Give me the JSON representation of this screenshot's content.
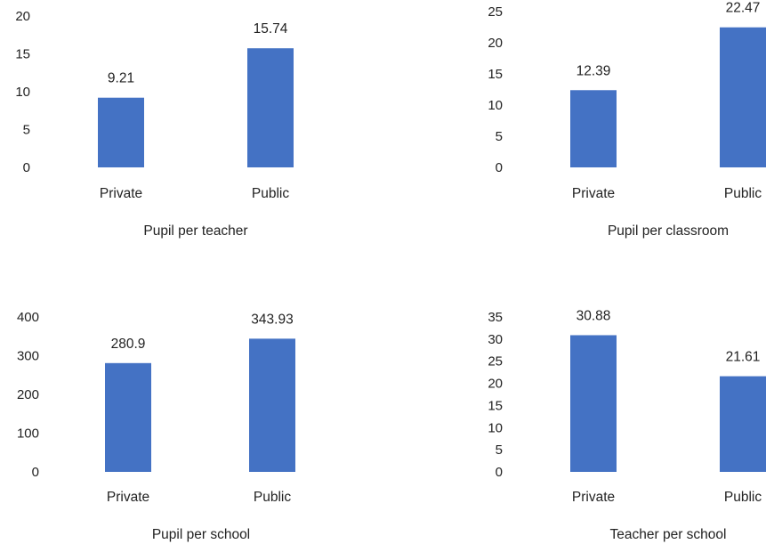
{
  "chart_data": [
    {
      "type": "bar",
      "title": "Pupil per teacher",
      "categories": [
        "Private",
        "Public"
      ],
      "values": [
        9.21,
        15.74
      ],
      "data_labels": [
        "9.21",
        "15.74"
      ],
      "ylim": [
        0,
        20
      ],
      "yticks": [
        "0",
        "5",
        "10",
        "15",
        "20"
      ],
      "grid": false,
      "color": "#4472c4"
    },
    {
      "type": "bar",
      "title": "Pupil per classroom",
      "categories": [
        "Private",
        "Public"
      ],
      "values": [
        12.39,
        22.47
      ],
      "data_labels": [
        "12.39",
        "22.47"
      ],
      "ylim": [
        0,
        25
      ],
      "yticks": [
        "0",
        "5",
        "10",
        "15",
        "20",
        "25"
      ],
      "grid": false,
      "color": "#4472c4"
    },
    {
      "type": "bar",
      "title": "Pupil per school",
      "categories": [
        "Private",
        "Public"
      ],
      "values": [
        280.9,
        343.93
      ],
      "data_labels": [
        "280.9",
        "343.93"
      ],
      "ylim": [
        0,
        400
      ],
      "yticks": [
        "0",
        "100",
        "200",
        "300",
        "400"
      ],
      "grid": false,
      "color": "#4472c4"
    },
    {
      "type": "bar",
      "title": "Teacher per school",
      "categories": [
        "Private",
        "Public"
      ],
      "values": [
        30.88,
        21.61
      ],
      "data_labels": [
        "30.88",
        "21.61"
      ],
      "ylim": [
        0,
        35
      ],
      "yticks": [
        "0",
        "5",
        "10",
        "15",
        "20",
        "25",
        "30",
        "35"
      ],
      "grid": false,
      "color": "#4472c4"
    }
  ]
}
